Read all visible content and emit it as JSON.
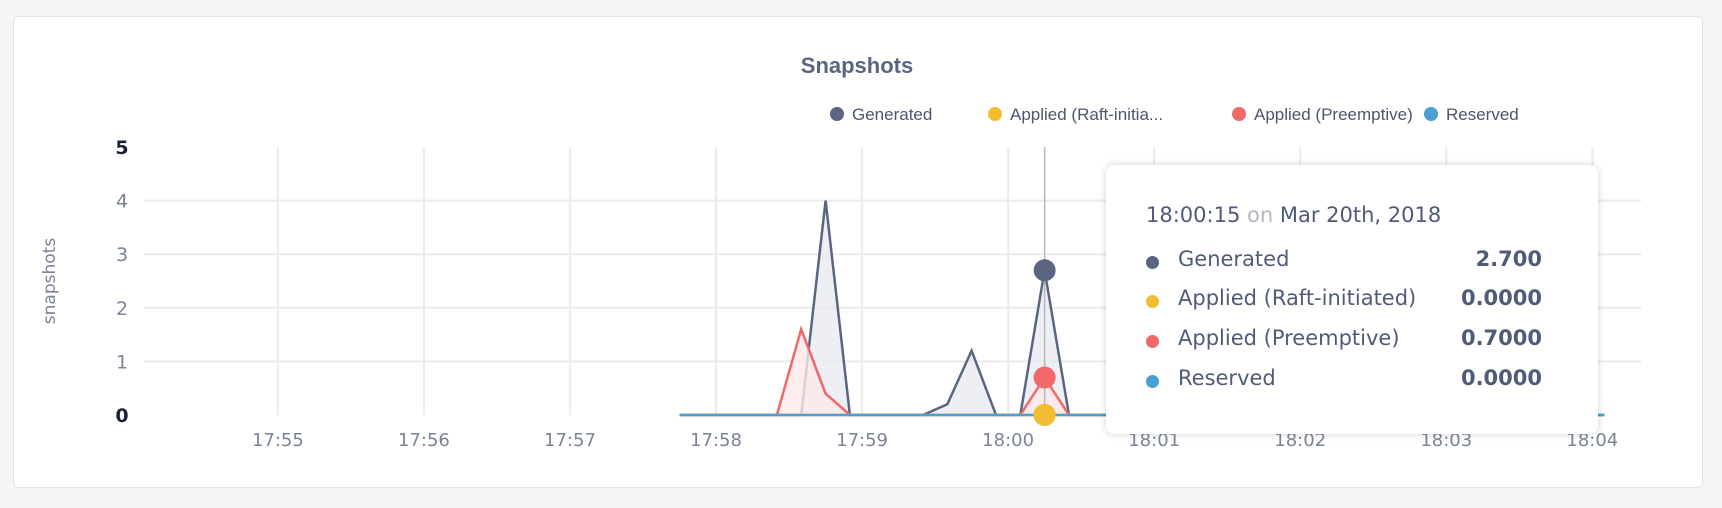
{
  "chart_data": {
    "type": "area",
    "title": "Snapshots",
    "ylabel": "snapshots",
    "xlabel": "",
    "ylim": [
      0,
      5
    ],
    "yticks": [
      "0",
      "1",
      "2",
      "3",
      "4",
      "5"
    ],
    "xticks": [
      "17:55",
      "17:56",
      "17:57",
      "17:58",
      "17:59",
      "18:00",
      "18:01",
      "18:02",
      "18:03",
      "18:04"
    ],
    "xlim": [
      "17:54:05",
      "18:04:20"
    ],
    "grid": true,
    "legend_position": "top-right",
    "x": [
      "17:57:45",
      "17:57:55",
      "17:58:05",
      "17:58:15",
      "17:58:25",
      "17:58:35",
      "17:58:45",
      "17:58:55",
      "17:59:05",
      "17:59:15",
      "17:59:25",
      "17:59:35",
      "17:59:45",
      "17:59:55",
      "18:00:05",
      "18:00:15",
      "18:00:25",
      "18:00:35",
      "18:00:45",
      "18:00:55",
      "18:01:05",
      "18:01:15",
      "18:01:25",
      "18:01:35",
      "18:01:45",
      "18:01:55",
      "18:02:05",
      "18:02:15",
      "18:02:25",
      "18:02:35",
      "18:02:45",
      "18:02:55",
      "18:03:05",
      "18:03:15",
      "18:03:25",
      "18:03:35",
      "18:03:45",
      "18:03:55",
      "18:04:05"
    ],
    "series": [
      {
        "name": "Generated",
        "color": "#5a6582",
        "fill": "#e9ebf1",
        "values": [
          0,
          0,
          0,
          0,
          0,
          0,
          4,
          0,
          0,
          0,
          0,
          0.2,
          1.2,
          0,
          0,
          2.7,
          0,
          0,
          0,
          0.6,
          0,
          0,
          0,
          0,
          0,
          0,
          0,
          0,
          0,
          0,
          0,
          0,
          0,
          0.6,
          0,
          0,
          0,
          0,
          0
        ]
      },
      {
        "name": "Applied (Raft-initiated)",
        "color": "#f2bd30",
        "fill": "#fdf3d9",
        "values": [
          0,
          0,
          0,
          0,
          0,
          0,
          0,
          0,
          0,
          0,
          0,
          0,
          0,
          0,
          0,
          0,
          0,
          0,
          0,
          0,
          0,
          0,
          0,
          0,
          0,
          0,
          0,
          0,
          0,
          0,
          0,
          0,
          0,
          0,
          0,
          0,
          0,
          0,
          0
        ]
      },
      {
        "name": "Applied (Preemptive)",
        "color": "#f06868",
        "fill": "#fde8e8",
        "values": [
          0,
          0,
          0,
          0,
          0,
          1.6,
          0.4,
          0,
          0,
          0,
          0,
          0,
          0,
          0,
          0,
          0.7,
          0,
          0,
          0,
          0,
          0,
          0,
          0,
          0,
          0,
          0,
          0,
          0,
          0,
          0,
          0,
          0,
          0,
          0,
          0,
          0,
          0,
          0,
          0
        ]
      },
      {
        "name": "Reserved",
        "color": "#4a9fd4",
        "fill": "#e3f1fa",
        "values": [
          0,
          0,
          0,
          0,
          0,
          0,
          0,
          0,
          0,
          0,
          0,
          0,
          0,
          0,
          0,
          0,
          0,
          0,
          0,
          0,
          0,
          0,
          0,
          0,
          0,
          0,
          0,
          0,
          0,
          0,
          0,
          0,
          0,
          0,
          0,
          0,
          0,
          0,
          0
        ]
      }
    ],
    "legend_labels": [
      "Generated",
      "Applied (Raft-initia...",
      "Applied (Preemptive)",
      "Reserved"
    ],
    "hover": {
      "x": "18:00:15",
      "time": "18:00:15",
      "on": "on",
      "date": "Mar 20th, 2018",
      "rows": [
        {
          "label": "Generated",
          "value": "2.700"
        },
        {
          "label": "Applied (Raft-initiated)",
          "value": "0.0000"
        },
        {
          "label": "Applied (Preemptive)",
          "value": "0.7000"
        },
        {
          "label": "Reserved",
          "value": "0.0000"
        }
      ]
    }
  }
}
